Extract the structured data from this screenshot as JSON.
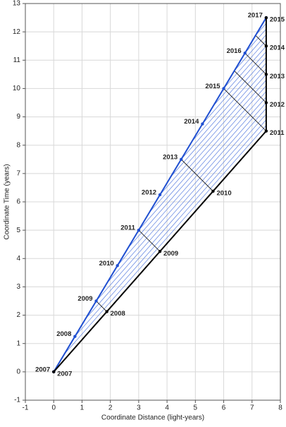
{
  "chart_data": {
    "type": "line",
    "x_label": "Coordinate Distance (light-years)",
    "y_label": "Coordinate Time (years)",
    "xlim": [
      -1,
      8
    ],
    "xticks": [
      -1,
      0,
      1,
      2,
      3,
      4,
      5,
      6,
      7,
      8
    ],
    "ylim": [
      -1,
      13
    ],
    "yticks": [
      -1,
      0,
      1,
      2,
      3,
      4,
      5,
      6,
      7,
      8,
      9,
      10,
      11,
      12,
      13
    ],
    "grid": true,
    "series": [
      {
        "color": "#1f4fd1",
        "label_side": "left",
        "x": [
          0,
          0.75,
          1.5,
          2.25,
          3,
          3.75,
          4.5,
          5.25,
          6,
          6.75,
          7.5
        ],
        "values": [
          0,
          1.25,
          2.5,
          3.75,
          5,
          6.25,
          7.5,
          8.75,
          10,
          11.25,
          12.5
        ],
        "point_labels": [
          "2007",
          "2008",
          "2009",
          "2010",
          "2011",
          "2012",
          "2013",
          "2014",
          "2015",
          "2016",
          "2017"
        ]
      },
      {
        "color": "#000000",
        "label_side": "right",
        "x": [
          0,
          1.875,
          3.75,
          5.625,
          7.5,
          7.5,
          7.5,
          7.5,
          7.5
        ],
        "values": [
          0,
          2.125,
          4.25,
          6.375,
          8.5,
          9.5,
          10.5,
          11.5,
          12.5
        ],
        "point_labels": [
          "2007",
          "2008",
          "2009",
          "2010",
          "2011",
          "2012",
          "2013",
          "2014",
          "2015"
        ]
      }
    ],
    "signal_lines": [
      {
        "x": [
          1.5,
          1.875
        ],
        "y": [
          2.5,
          2.125
        ]
      },
      {
        "x": [
          3,
          3.75
        ],
        "y": [
          5,
          4.25
        ]
      },
      {
        "x": [
          4.5,
          5.625
        ],
        "y": [
          7.5,
          6.375
        ]
      },
      {
        "x": [
          6,
          7.5
        ],
        "y": [
          10,
          8.5
        ]
      },
      {
        "x": [
          6.75,
          7.5
        ],
        "y": [
          11.25,
          10.5
        ]
      },
      {
        "x": [
          6.375,
          7.5
        ],
        "y": [
          10.625,
          9.5
        ]
      },
      {
        "x": [
          7.125,
          7.5
        ],
        "y": [
          11.875,
          11.5
        ]
      }
    ]
  }
}
